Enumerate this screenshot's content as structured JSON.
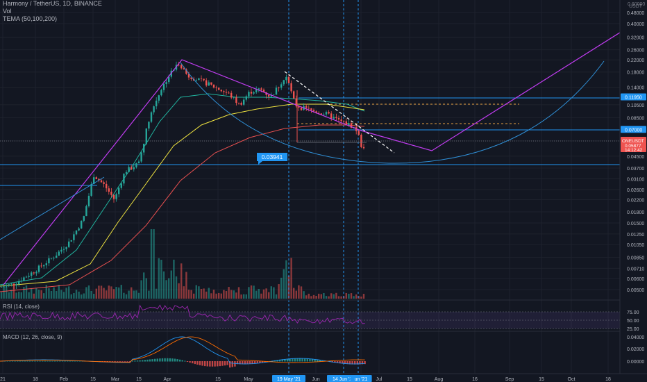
{
  "header": {
    "symbol_line": "Harmony / TetherUS, 1D, BINANCE",
    "vol_label": "Vol",
    "tema_label": "TEMA (50,100,200)"
  },
  "panes": {
    "rsi_label": "RSI (14, close)",
    "macd_label": "MACD (12, 26, close, 9)"
  },
  "colors": {
    "background": "#131722",
    "up": "#26a69a",
    "down": "#ef5350",
    "trendline": "#c03cf0",
    "arc": "#2f8fd6",
    "horizontal": "#2196f3",
    "tema_fast": "#21b5a0",
    "tema_mid": "#f0e440",
    "tema_slow": "#e85050",
    "dashed_orange": "#e8a040",
    "rsi": "#9c27b0",
    "macd": "#2196f3",
    "signal": "#ff6d00"
  },
  "chart_data": {
    "type": "candlestick",
    "scale": "log",
    "currency": "USDT",
    "price_axis_ticks": [
      "0.48000",
      "0.40000",
      "0.32000",
      "0.26000",
      "0.22000",
      "0.18000",
      "0.14000",
      "0.10500",
      "0.08500",
      "0.05800",
      "0.04500",
      "0.03700",
      "0.03100",
      "0.02600",
      "0.02200",
      "0.01800",
      "0.01500",
      "0.01250",
      "0.01050",
      "0.00850",
      "0.00710",
      "0.00600",
      "0.00500"
    ],
    "price_levels": [
      {
        "value": 0.1195,
        "label": "0.11950"
      },
      {
        "value": 0.07,
        "label": "0.07000"
      },
      {
        "value": 0.05805,
        "label": "0.05805"
      },
      {
        "value": 0.03941,
        "label": "0.03941"
      }
    ],
    "current_price": {
      "symbol": "ONEUSDT",
      "value": "0.05877",
      "countdown": "14:12:42"
    },
    "rsi_ticks": [
      "75.00",
      "50.00",
      "25.00"
    ],
    "macd_ticks": [
      "0.04000",
      "0.02000",
      "0.00000"
    ],
    "time_axis_labels": [
      "21",
      "18",
      "Feb",
      "15",
      "Mar",
      "15",
      "Apr",
      "15",
      "May",
      "19 May '21",
      "Jun",
      "14 Jun '21",
      "un '21",
      "Jul",
      "15",
      "Aug",
      "16",
      "Sep",
      "15",
      "Oct",
      "18"
    ]
  }
}
